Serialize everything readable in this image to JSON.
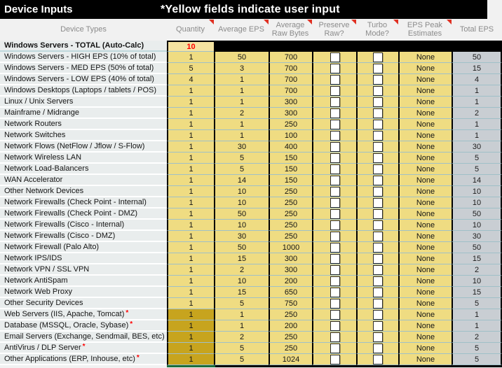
{
  "title_bar": {
    "left": "Device Inputs",
    "right": "*Yellow fields indicate user input"
  },
  "marks": {
    "asterisk": "*"
  },
  "colors": {
    "input_yellow": "#efdc82",
    "input_dark_yellow": "#c7a41e",
    "autocalc_gray": "#c9ced3",
    "total_red_text": "#ff0000",
    "comment_triangle_red": "#e03022",
    "selection_green": "#1b6c3b"
  },
  "columns": [
    {
      "label": "Device Types",
      "note": false
    },
    {
      "label": "Quantity",
      "note": true
    },
    {
      "label": "Average EPS",
      "note": true
    },
    {
      "label": "Average Raw Bytes",
      "note": true
    },
    {
      "label": "Preserve Raw?",
      "note": true
    },
    {
      "label": "Turbo Mode?",
      "note": true
    },
    {
      "label": "EPS Peak Estimates",
      "note": true
    },
    {
      "label": "Total EPS",
      "note": false
    }
  ],
  "total_row": {
    "label": "Windows Servers - TOTAL (Auto-Calc)",
    "quantity": "10"
  },
  "rows": [
    {
      "label": "Windows Servers - HIGH EPS (10% of total)",
      "asterisk": false,
      "quantity": "1",
      "avg_eps": "50",
      "raw_bytes": "700",
      "peak": "None",
      "total": "50",
      "qty_dark": false
    },
    {
      "label": "Windows Servers - MED EPS (50% of total)",
      "asterisk": false,
      "quantity": "5",
      "avg_eps": "3",
      "raw_bytes": "700",
      "peak": "None",
      "total": "15",
      "qty_dark": false
    },
    {
      "label": "Windows Servers - LOW EPS (40% of total)",
      "asterisk": false,
      "quantity": "4",
      "avg_eps": "1",
      "raw_bytes": "700",
      "peak": "None",
      "total": "4",
      "qty_dark": false
    },
    {
      "label": "Windows Desktops (Laptops / tablets / POS)",
      "asterisk": false,
      "quantity": "1",
      "avg_eps": "1",
      "raw_bytes": "700",
      "peak": "None",
      "total": "1",
      "qty_dark": false
    },
    {
      "label": "Linux / Unix Servers",
      "asterisk": false,
      "quantity": "1",
      "avg_eps": "1",
      "raw_bytes": "300",
      "peak": "None",
      "total": "1",
      "qty_dark": false
    },
    {
      "label": "Mainframe / Midrange",
      "asterisk": false,
      "quantity": "1",
      "avg_eps": "2",
      "raw_bytes": "300",
      "peak": "None",
      "total": "2",
      "qty_dark": false
    },
    {
      "label": "Network Routers",
      "asterisk": false,
      "quantity": "1",
      "avg_eps": "1",
      "raw_bytes": "250",
      "peak": "None",
      "total": "1",
      "qty_dark": false
    },
    {
      "label": "Network Switches",
      "asterisk": false,
      "quantity": "1",
      "avg_eps": "1",
      "raw_bytes": "100",
      "peak": "None",
      "total": "1",
      "qty_dark": false
    },
    {
      "label": "Network Flows (NetFlow / Jflow / S-Flow)",
      "asterisk": false,
      "quantity": "1",
      "avg_eps": "30",
      "raw_bytes": "400",
      "peak": "None",
      "total": "30",
      "qty_dark": false
    },
    {
      "label": "Network Wireless LAN",
      "asterisk": false,
      "quantity": "1",
      "avg_eps": "5",
      "raw_bytes": "150",
      "peak": "None",
      "total": "5",
      "qty_dark": false
    },
    {
      "label": "Network Load-Balancers",
      "asterisk": false,
      "quantity": "1",
      "avg_eps": "5",
      "raw_bytes": "150",
      "peak": "None",
      "total": "5",
      "qty_dark": false
    },
    {
      "label": "WAN Accelerator",
      "asterisk": false,
      "quantity": "1",
      "avg_eps": "14",
      "raw_bytes": "150",
      "peak": "None",
      "total": "14",
      "qty_dark": false
    },
    {
      "label": "Other Network Devices",
      "asterisk": false,
      "quantity": "1",
      "avg_eps": "10",
      "raw_bytes": "250",
      "peak": "None",
      "total": "10",
      "qty_dark": false
    },
    {
      "label": "Network Firewalls (Check Point - Internal)",
      "asterisk": false,
      "quantity": "1",
      "avg_eps": "10",
      "raw_bytes": "250",
      "peak": "None",
      "total": "10",
      "qty_dark": false
    },
    {
      "label": "Network Firewalls (Check Point - DMZ)",
      "asterisk": false,
      "quantity": "1",
      "avg_eps": "50",
      "raw_bytes": "250",
      "peak": "None",
      "total": "50",
      "qty_dark": false
    },
    {
      "label": "Network Firewalls (Cisco - Internal)",
      "asterisk": false,
      "quantity": "1",
      "avg_eps": "10",
      "raw_bytes": "250",
      "peak": "None",
      "total": "10",
      "qty_dark": false
    },
    {
      "label": "Network Firewalls (Cisco - DMZ)",
      "asterisk": false,
      "quantity": "1",
      "avg_eps": "30",
      "raw_bytes": "250",
      "peak": "None",
      "total": "30",
      "qty_dark": false
    },
    {
      "label": "Network Firewall (Palo Alto)",
      "asterisk": false,
      "quantity": "1",
      "avg_eps": "50",
      "raw_bytes": "1000",
      "peak": "None",
      "total": "50",
      "qty_dark": false
    },
    {
      "label": "Network IPS/IDS",
      "asterisk": false,
      "quantity": "1",
      "avg_eps": "15",
      "raw_bytes": "300",
      "peak": "None",
      "total": "15",
      "qty_dark": false
    },
    {
      "label": "Network VPN / SSL VPN",
      "asterisk": false,
      "quantity": "1",
      "avg_eps": "2",
      "raw_bytes": "300",
      "peak": "None",
      "total": "2",
      "qty_dark": false
    },
    {
      "label": "Network AntiSpam",
      "asterisk": false,
      "quantity": "1",
      "avg_eps": "10",
      "raw_bytes": "200",
      "peak": "None",
      "total": "10",
      "qty_dark": false
    },
    {
      "label": "Network Web Proxy",
      "asterisk": false,
      "quantity": "1",
      "avg_eps": "15",
      "raw_bytes": "650",
      "peak": "None",
      "total": "15",
      "qty_dark": false
    },
    {
      "label": "Other Security Devices",
      "asterisk": false,
      "quantity": "1",
      "avg_eps": "5",
      "raw_bytes": "750",
      "peak": "None",
      "total": "5",
      "qty_dark": false
    },
    {
      "label": "Web Servers (IIS, Apache, Tomcat)",
      "asterisk": true,
      "quantity": "1",
      "avg_eps": "1",
      "raw_bytes": "250",
      "peak": "None",
      "total": "1",
      "qty_dark": true
    },
    {
      "label": "Database (MSSQL, Oracle, Sybase)",
      "asterisk": true,
      "quantity": "1",
      "avg_eps": "1",
      "raw_bytes": "200",
      "peak": "None",
      "total": "1",
      "qty_dark": true
    },
    {
      "label": "Email Servers (Exchange, Sendmail, BES, etc)",
      "asterisk": false,
      "quantity": "1",
      "avg_eps": "2",
      "raw_bytes": "250",
      "peak": "None",
      "total": "2",
      "qty_dark": true
    },
    {
      "label": "AntiVirus / DLP Server",
      "asterisk": true,
      "quantity": "1",
      "avg_eps": "5",
      "raw_bytes": "250",
      "peak": "None",
      "total": "5",
      "qty_dark": true
    },
    {
      "label": "Other Applications (ERP, Inhouse, etc)",
      "asterisk": true,
      "quantity": "1",
      "avg_eps": "5",
      "raw_bytes": "1024",
      "peak": "None",
      "total": "5",
      "qty_dark": true
    }
  ]
}
